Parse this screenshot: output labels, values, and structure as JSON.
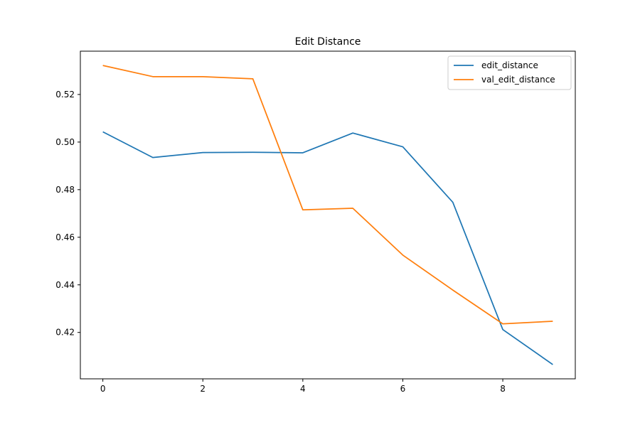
{
  "chart_data": {
    "type": "line",
    "title": "Edit Distance",
    "xlabel": "",
    "ylabel": "",
    "x": [
      0,
      1,
      2,
      3,
      4,
      5,
      6,
      7,
      8,
      9
    ],
    "xlim": [
      -0.45,
      9.45
    ],
    "ylim": [
      0.4005,
      0.5382
    ],
    "xticks": [
      0,
      2,
      4,
      6,
      8
    ],
    "yticks": [
      0.42,
      0.44,
      0.46,
      0.48,
      0.5,
      0.52
    ],
    "xtick_labels": [
      "0",
      "2",
      "4",
      "6",
      "8"
    ],
    "ytick_labels": [
      "0.42",
      "0.44",
      "0.46",
      "0.48",
      "0.50",
      "0.52"
    ],
    "grid": false,
    "legend_position": "upper right",
    "series": [
      {
        "name": "edit_distance",
        "color": "#1f77b4",
        "values": [
          0.5043,
          0.4935,
          0.4956,
          0.4957,
          0.4955,
          0.5038,
          0.498,
          0.4747,
          0.4212,
          0.4065
        ]
      },
      {
        "name": "val_edit_distance",
        "color": "#ff7f0e",
        "values": [
          0.5322,
          0.5275,
          0.5275,
          0.5266,
          0.4715,
          0.4722,
          0.4525,
          0.4378,
          0.4236,
          0.4247
        ]
      }
    ]
  }
}
